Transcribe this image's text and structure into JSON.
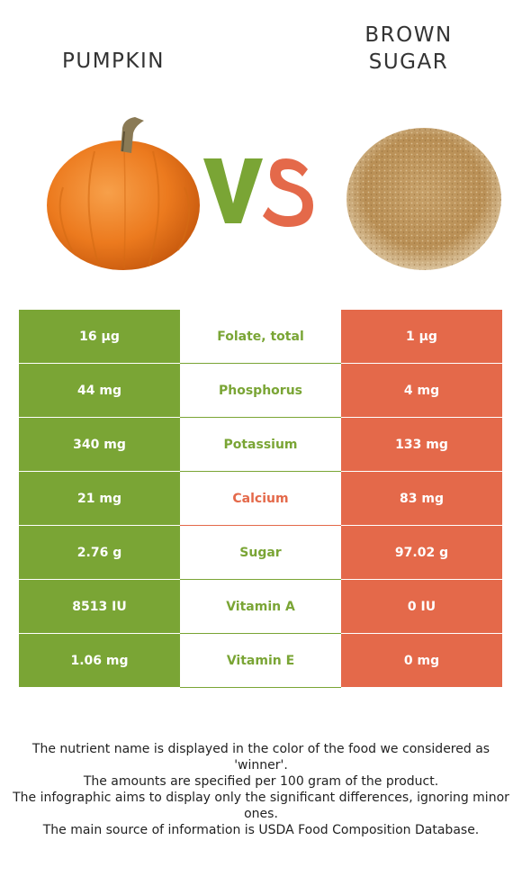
{
  "foods": {
    "left": {
      "name": "PUMPKIN",
      "color": "#7aa535"
    },
    "right": {
      "name_line1": "BROWN",
      "name_line2": "SUGAR",
      "color": "#e4694a"
    }
  },
  "vs": {
    "v": "V",
    "s": "S"
  },
  "rows": [
    {
      "left": "16 µg",
      "nutrient": "Folate, total",
      "right": "1 µg",
      "winner": "left"
    },
    {
      "left": "44 mg",
      "nutrient": "Phosphorus",
      "right": "4 mg",
      "winner": "left"
    },
    {
      "left": "340 mg",
      "nutrient": "Potassium",
      "right": "133 mg",
      "winner": "left"
    },
    {
      "left": "21 mg",
      "nutrient": "Calcium",
      "right": "83 mg",
      "winner": "right"
    },
    {
      "left": "2.76 g",
      "nutrient": "Sugar",
      "right": "97.02 g",
      "winner": "left"
    },
    {
      "left": "8513 IU",
      "nutrient": "Vitamin A",
      "right": "0 IU",
      "winner": "left"
    },
    {
      "left": "1.06 mg",
      "nutrient": "Vitamin E",
      "right": "0 mg",
      "winner": "left"
    }
  ],
  "footnotes": [
    "The nutrient name is displayed in the color of the food we considered as 'winner'.",
    "The amounts are specified per 100 gram of the product.",
    "The infographic aims to display only the significant differences, ignoring minor ones.",
    "The main source of information is USDA Food Composition Database."
  ]
}
